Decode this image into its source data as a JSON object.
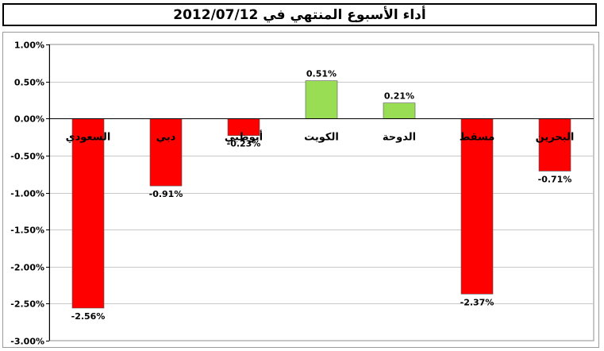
{
  "chart_data": {
    "type": "bar",
    "title": "أداء الأسبوع المنتهي في 2012/07/12",
    "categories": [
      "السعودي",
      "دبي",
      "أبوظبي",
      "الكويت",
      "الدوحة",
      "مسقط",
      "البحرين"
    ],
    "values": [
      -2.56,
      -0.91,
      -0.23,
      0.51,
      0.21,
      -2.37,
      -0.71
    ],
    "data_labels": [
      "-2.56%",
      "-0.91%",
      "-0.23%",
      "0.51%",
      "0.21%",
      "-2.37%",
      "-0.71%"
    ],
    "y_ticks": [
      "1.00%",
      "0.50%",
      "0.00%",
      "-0.50%",
      "-1.00%",
      "-1.50%",
      "-2.00%",
      "-2.50%",
      "-3.00%"
    ],
    "ylim": [
      -3.0,
      1.0
    ],
    "xlabel": "",
    "ylabel": "",
    "grid": true,
    "colors": {
      "negative": "#ff0000",
      "positive": "#99dd55",
      "grid": "#c8c8c8",
      "plot_area": "#ffffff"
    }
  }
}
